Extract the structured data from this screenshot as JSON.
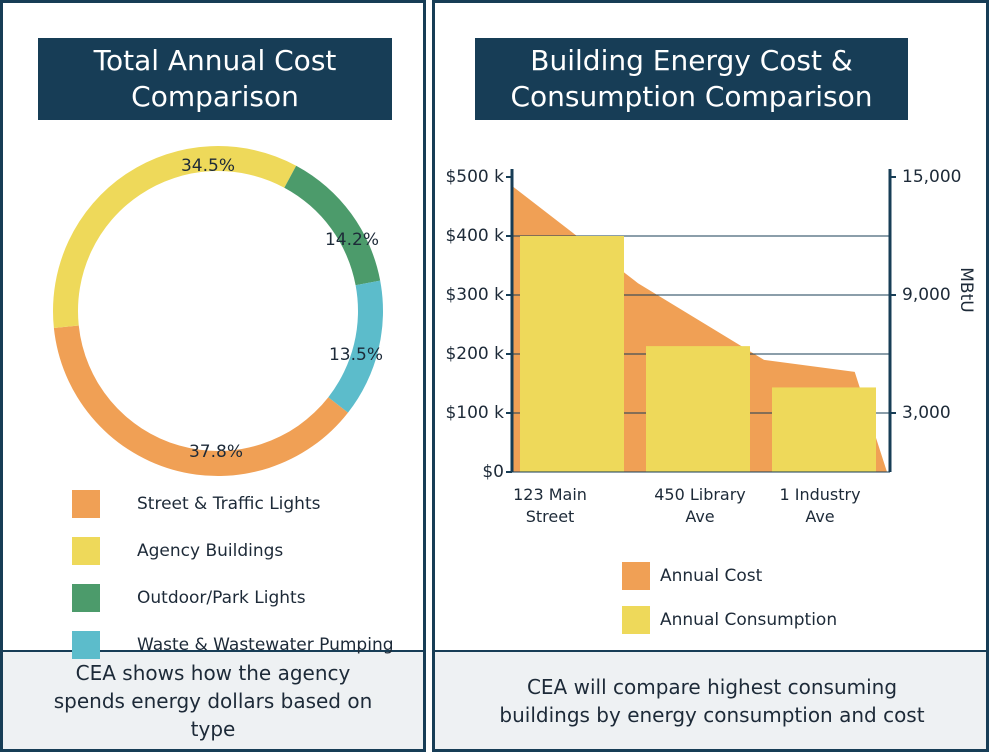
{
  "chart_data": [
    {
      "type": "donut",
      "title": "Total Annual Cost Comparison",
      "categories": [
        "Street & Traffic Lights",
        "Agency Buildings",
        "Outdoor/Park Lights",
        "Waste & Wastewater Pumping"
      ],
      "values": [
        37.8,
        34.5,
        14.2,
        13.5
      ],
      "value_labels": [
        "37.8%",
        "34.5%",
        "14.2%",
        "13.5%"
      ],
      "colors": [
        "#f0a055",
        "#eed95a",
        "#4c9b6b",
        "#5cbccb"
      ],
      "caption": "CEA shows how the agency spends energy dollars based on type"
    },
    {
      "type": "bar_area",
      "title": "Building Energy Cost & Consumption Comparison",
      "categories": [
        "123 Main Street",
        "450 Library Ave",
        "1 Industry Ave"
      ],
      "series": [
        {
          "name": "Annual Cost",
          "color": "#f0a055",
          "kind": "area",
          "values": [
            485000,
            320000,
            190000
          ]
        },
        {
          "name": "Annual Consumption",
          "color": "#eed95a",
          "kind": "bar",
          "axis": "y2",
          "values": [
            12000,
            6400,
            4300
          ]
        }
      ],
      "ylim": [
        0,
        500000
      ],
      "yticks": [
        {
          "value": 0,
          "label": "$0"
        },
        {
          "value": 100000,
          "label": "$100 k"
        },
        {
          "value": 200000,
          "label": "$200 k"
        },
        {
          "value": 300000,
          "label": "$300 k"
        },
        {
          "value": 400000,
          "label": "$400 k"
        },
        {
          "value": 500000,
          "label": "$500 k"
        }
      ],
      "y2lim": [
        0,
        15000
      ],
      "y2ticks": [
        {
          "value": 3000,
          "label": "3,000"
        },
        {
          "value": 9000,
          "label": "9,000"
        },
        {
          "value": 15000,
          "label": "15,000"
        }
      ],
      "y2label": "MBtU",
      "grid": true,
      "caption": "CEA will compare highest consuming buildings by energy consumption and cost"
    }
  ]
}
